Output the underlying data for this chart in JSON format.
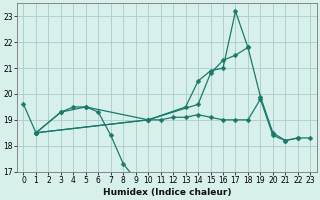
{
  "xlabel": "Humidex (Indice chaleur)",
  "ylabel": "",
  "xlim": [
    -0.5,
    23.5
  ],
  "ylim": [
    17,
    23.5
  ],
  "yticks": [
    17,
    18,
    19,
    20,
    21,
    22,
    23
  ],
  "xticks": [
    0,
    1,
    2,
    3,
    4,
    5,
    6,
    7,
    8,
    9,
    10,
    11,
    12,
    13,
    14,
    15,
    16,
    17,
    18,
    19,
    20,
    21,
    22,
    23
  ],
  "bg_color": "#d8f0ec",
  "grid_color": "#aaccc6",
  "line_color": "#1a7a6a",
  "series": [
    {
      "x": [
        0,
        1,
        3,
        5,
        10,
        13,
        14,
        15,
        16,
        17,
        18,
        19,
        20,
        21,
        22
      ],
      "y": [
        19.6,
        18.5,
        19.3,
        19.5,
        19.0,
        19.5,
        20.5,
        20.9,
        21.0,
        23.2,
        21.8,
        19.9,
        18.5,
        18.2,
        18.3
      ]
    },
    {
      "x": [
        1,
        3,
        4,
        5,
        6,
        7,
        8,
        9,
        10
      ],
      "y": [
        18.5,
        19.3,
        19.5,
        19.5,
        19.3,
        18.4,
        17.3,
        16.7,
        16.6
      ]
    },
    {
      "x": [
        1,
        10,
        14,
        15,
        16,
        17,
        18
      ],
      "y": [
        18.5,
        19.0,
        19.6,
        20.8,
        21.3,
        21.5,
        21.8
      ]
    },
    {
      "x": [
        1,
        10,
        11,
        12,
        13,
        14,
        15,
        16,
        17,
        18,
        19,
        20,
        21,
        22,
        23
      ],
      "y": [
        18.5,
        19.0,
        19.0,
        19.1,
        19.1,
        19.2,
        19.1,
        19.0,
        19.0,
        19.0,
        19.8,
        18.4,
        18.2,
        18.3,
        18.3
      ]
    }
  ]
}
